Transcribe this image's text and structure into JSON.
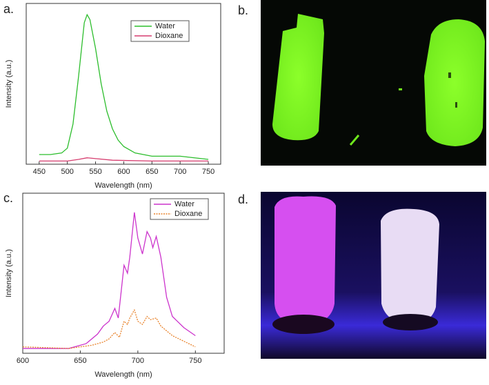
{
  "chart_data": [
    {
      "type": "line",
      "panel_label": "a.",
      "x_label": "Wavelength (nm)",
      "y_label": "Intensity (a.u.)",
      "xlim": [
        427,
        772
      ],
      "ylim": [
        0,
        1
      ],
      "xticks": [
        450,
        500,
        550,
        600,
        650,
        700,
        750
      ],
      "legend": "top-right",
      "series": [
        {
          "name": "Water",
          "color": "#2bbd2b",
          "x": [
            450,
            470,
            490,
            500,
            510,
            520,
            530,
            535,
            540,
            550,
            560,
            570,
            580,
            590,
            600,
            620,
            650,
            700,
            750
          ],
          "values": [
            0.06,
            0.06,
            0.07,
            0.1,
            0.25,
            0.55,
            0.88,
            0.93,
            0.9,
            0.72,
            0.5,
            0.33,
            0.22,
            0.15,
            0.11,
            0.07,
            0.05,
            0.05,
            0.03
          ]
        },
        {
          "name": "Dioxane",
          "color": "#d63c6e",
          "x": [
            450,
            500,
            520,
            535,
            550,
            580,
            650,
            750
          ],
          "values": [
            0.02,
            0.02,
            0.03,
            0.04,
            0.035,
            0.025,
            0.02,
            0.02
          ]
        }
      ]
    },
    {
      "type": "line",
      "panel_label": "c.",
      "x_label": "Wavelength (nm)",
      "y_label": "Intensity (a.u.)",
      "xlim": [
        600,
        775
      ],
      "ylim": [
        0,
        1
      ],
      "xticks": [
        600,
        650,
        700,
        750
      ],
      "legend": "top-right",
      "series": [
        {
          "name": "Water",
          "color": "#cc33cc",
          "x": [
            600,
            640,
            655,
            665,
            670,
            675,
            680,
            683,
            688,
            691,
            693,
            697,
            700,
            704,
            708,
            711,
            713,
            716,
            720,
            725,
            730,
            740,
            750
          ],
          "values": [
            0.03,
            0.03,
            0.06,
            0.12,
            0.17,
            0.2,
            0.28,
            0.22,
            0.55,
            0.5,
            0.6,
            0.88,
            0.72,
            0.62,
            0.76,
            0.72,
            0.66,
            0.73,
            0.6,
            0.35,
            0.23,
            0.16,
            0.11
          ]
        },
        {
          "name": "Dioxane",
          "color": "#e8822a",
          "x": [
            600,
            640,
            660,
            670,
            675,
            680,
            684,
            688,
            691,
            693,
            697,
            700,
            704,
            708,
            711,
            716,
            720,
            730,
            750
          ],
          "values": [
            0.04,
            0.03,
            0.05,
            0.07,
            0.09,
            0.13,
            0.1,
            0.2,
            0.18,
            0.22,
            0.27,
            0.2,
            0.18,
            0.23,
            0.21,
            0.22,
            0.17,
            0.11,
            0.04
          ]
        }
      ]
    }
  ],
  "photos": [
    {
      "label": "b."
    },
    {
      "label": "d."
    }
  ]
}
